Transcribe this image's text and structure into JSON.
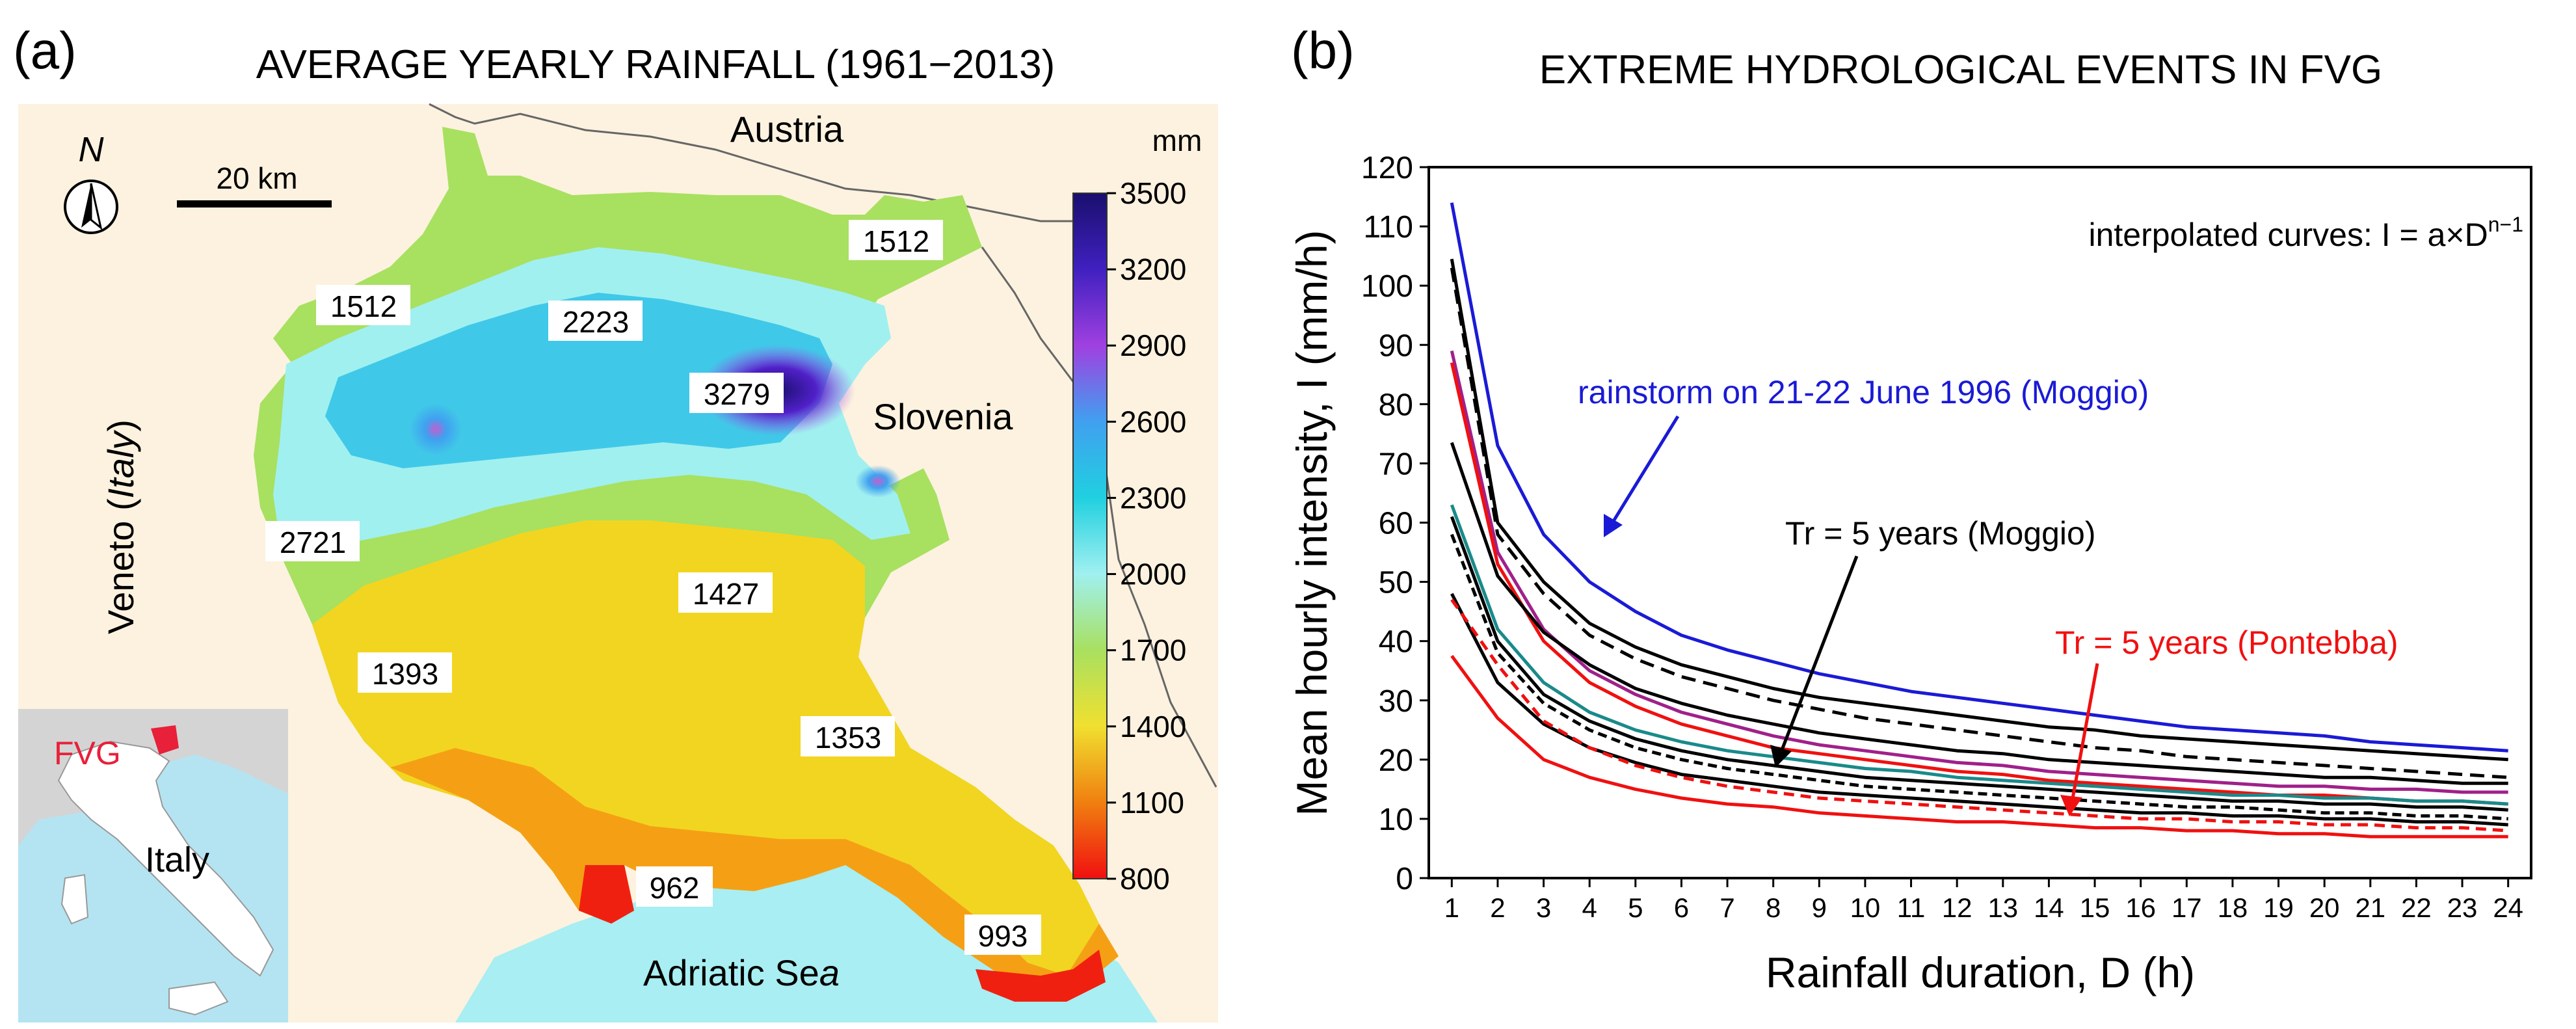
{
  "panel_a": {
    "letter": "(a)",
    "title": "AVERAGE YEARLY RAINFALL (1961−2013)",
    "north_letter": "N",
    "scale_label": "20 km",
    "region_labels": {
      "austria": "Austria",
      "slovenia": "Slovenia",
      "veneto_prefix": "Veneto (",
      "veneto_italic": "Italy",
      "veneto_suffix": ")",
      "adriatic_main": "Adriatic Se",
      "adriatic_tail": "a"
    },
    "point_values": [
      "1512",
      "1512",
      "2223",
      "3279",
      "2721",
      "1427",
      "1393",
      "1353",
      "962",
      "993"
    ],
    "colorbar": {
      "unit": "mm",
      "ticks": [
        "3500",
        "3200",
        "2900",
        "2600",
        "2300",
        "2000",
        "1700",
        "1400",
        "1100",
        "800"
      ],
      "colors": [
        "#1a0f6e",
        "#4020c0",
        "#a040e0",
        "#40a0f0",
        "#20d0e0",
        "#a0f0f0",
        "#a8e060",
        "#f0e030",
        "#f08010",
        "#f01010"
      ]
    },
    "inset": {
      "fvg": "FVG",
      "italy": "Italy"
    }
  },
  "panel_b": {
    "letter": "(b)",
    "title": "EXTREME HYDROLOGICAL EVENTS IN FVG",
    "annotations": {
      "formula_main": "interpolated curves: I = a×D",
      "formula_exp": "n−1",
      "rainstorm": "rainstorm on 21-22 June 1996 (Moggio)",
      "tr_moggio": "Tr = 5 years (Moggio)",
      "tr_pontebba": "Tr = 5 years (Pontebba)"
    },
    "colors": {
      "rainstorm": "#1a1ad6",
      "pontebba": "#f01010",
      "black": "#000000",
      "purple": "#a0208a",
      "teal": "#1a8a8a"
    }
  },
  "chart_data": {
    "type": "line",
    "xlabel": "Rainfall duration, D (h)",
    "ylabel": "Mean hourly intensity, I (mm/h)",
    "xlim": [
      0.5,
      24.5
    ],
    "ylim": [
      0,
      120
    ],
    "x_ticks": [
      1,
      2,
      3,
      4,
      5,
      6,
      7,
      8,
      9,
      10,
      11,
      12,
      13,
      14,
      15,
      16,
      17,
      18,
      19,
      20,
      21,
      22,
      23,
      24
    ],
    "y_ticks": [
      0,
      10,
      20,
      30,
      40,
      50,
      60,
      70,
      80,
      90,
      100,
      110,
      120
    ],
    "x": [
      1,
      2,
      3,
      4,
      5,
      6,
      7,
      8,
      9,
      10,
      11,
      12,
      13,
      14,
      15,
      16,
      17,
      18,
      19,
      20,
      21,
      22,
      23,
      24
    ],
    "series": [
      {
        "color": "#1a1ad6",
        "dash": "",
        "values": [
          114,
          73,
          58,
          50,
          45,
          41,
          38.5,
          36.5,
          34.5,
          33,
          31.5,
          30.5,
          29.5,
          28.5,
          27.5,
          26.5,
          25.5,
          25,
          24.5,
          24,
          23,
          22.5,
          22,
          21.5
        ]
      },
      {
        "color": "#000000",
        "dash": "",
        "values": [
          104.5,
          60,
          50,
          43,
          39,
          36,
          34,
          32,
          30.5,
          29.5,
          28.5,
          27.5,
          26.5,
          25.5,
          25,
          24,
          23.5,
          23,
          22.5,
          22,
          21.5,
          21,
          20.5,
          20
        ]
      },
      {
        "color": "#000000",
        "dash": "22,12",
        "values": [
          103,
          58,
          48,
          41,
          37,
          34,
          32,
          30,
          28.5,
          27,
          26,
          25,
          24,
          23,
          22,
          21.5,
          20.5,
          20,
          19.5,
          19,
          18.5,
          18,
          17.5,
          17
        ]
      },
      {
        "color": "#a0208a",
        "dash": "",
        "values": [
          89,
          55,
          42,
          35,
          31,
          28,
          26,
          24,
          22.5,
          21.5,
          20.5,
          19.5,
          19,
          18,
          17.5,
          17,
          16.5,
          16,
          15.5,
          15.5,
          15,
          15,
          14.5,
          14.5
        ]
      },
      {
        "color": "#f01010",
        "dash": "",
        "values": [
          87,
          53,
          40,
          33,
          29,
          26,
          24,
          22,
          21,
          20,
          19,
          18,
          17.5,
          16.5,
          16,
          15.5,
          15,
          14.5,
          14,
          14,
          13.5,
          13,
          13,
          12.5
        ]
      },
      {
        "color": "#000000",
        "dash": "",
        "values": [
          73.5,
          51,
          41.5,
          36,
          32,
          29.5,
          27.5,
          26,
          24.5,
          23.5,
          22.5,
          21.5,
          21,
          20,
          19.5,
          19,
          18.5,
          18,
          17.5,
          17,
          17,
          16.5,
          16,
          16
        ]
      },
      {
        "color": "#1a8a8a",
        "dash": "",
        "values": [
          63,
          42,
          33,
          28,
          25,
          23,
          21.5,
          20.5,
          19.5,
          18.5,
          18,
          17,
          16.5,
          16,
          15.5,
          15,
          14.5,
          14,
          14,
          13.5,
          13.5,
          13,
          13,
          12.5
        ]
      },
      {
        "color": "#000000",
        "dash": "",
        "values": [
          61,
          40,
          31,
          26.5,
          23.5,
          21.5,
          20,
          19,
          18,
          17,
          16.5,
          16,
          15.5,
          15,
          14.5,
          14,
          13.5,
          13,
          13,
          12.5,
          12.5,
          12,
          12,
          11.5
        ]
      },
      {
        "color": "#000000",
        "dash": "14,8",
        "values": [
          58,
          38,
          29.5,
          25,
          22,
          20,
          18.5,
          17.5,
          16.5,
          15.5,
          15,
          14.5,
          14,
          13.5,
          13,
          12.5,
          12,
          12,
          11.5,
          11,
          11,
          10.5,
          10.5,
          10
        ]
      },
      {
        "color": "#000000",
        "dash": "",
        "values": [
          48,
          33,
          26,
          22,
          19.5,
          17.5,
          16.5,
          15.5,
          14.5,
          14,
          13.5,
          13,
          12.5,
          12,
          11.5,
          11,
          11,
          10.5,
          10.5,
          10,
          10,
          9.5,
          9.5,
          9
        ]
      },
      {
        "color": "#f01010",
        "dash": "16,10",
        "values": [
          47,
          36,
          26.5,
          22,
          19,
          17,
          15.5,
          14.5,
          13.5,
          13,
          12.5,
          12,
          11.5,
          11,
          10.5,
          10,
          10,
          9.5,
          9.5,
          9,
          9,
          8.5,
          8.5,
          8
        ]
      },
      {
        "color": "#f01010",
        "dash": "",
        "values": [
          37.5,
          27,
          20,
          17,
          15,
          13.5,
          12.5,
          12,
          11,
          10.5,
          10,
          9.5,
          9.5,
          9,
          8.5,
          8.5,
          8,
          8,
          7.5,
          7.5,
          7,
          7,
          7,
          7
        ]
      }
    ]
  }
}
